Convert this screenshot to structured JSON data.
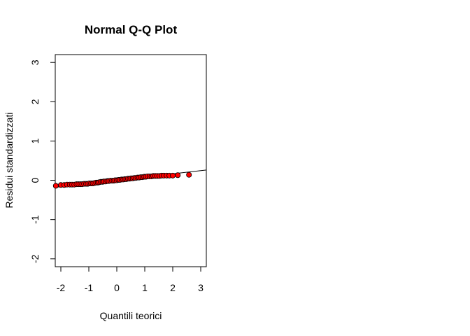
{
  "chart_data": {
    "type": "scatter",
    "title": "Normal Q-Q Plot",
    "xlabel": "Quantili teorici",
    "ylabel": "Residui  standardizzati",
    "xlim": [
      -2.2,
      3.2
    ],
    "ylim": [
      -2.2,
      3.2
    ],
    "x_ticks": [
      -2,
      -1,
      0,
      1,
      2,
      3
    ],
    "y_ticks": [
      -2,
      -1,
      0,
      1,
      2,
      3
    ],
    "x_tick_labels": [
      "-2",
      "-1",
      "0",
      "1",
      "2",
      "3"
    ],
    "y_tick_labels": [
      "-2",
      "-1",
      "0",
      "1",
      "2",
      "3"
    ],
    "grid": false,
    "point_color": "#ff0000",
    "point_edge_color": "#000000",
    "line_color": "#000000",
    "reference_line": {
      "intercept": 0.0,
      "slope": 0.082
    },
    "series": [
      {
        "x": [
          -2.18,
          -2.0,
          -1.88,
          -1.78,
          -1.68,
          -1.6,
          -1.52,
          -1.44,
          -1.37,
          -1.3,
          -1.24,
          -1.17,
          -1.1,
          -1.04,
          -0.98,
          -0.92,
          -0.86,
          -0.8,
          -0.74,
          -0.68,
          -0.63,
          -0.57,
          -0.51,
          -0.46,
          -0.4,
          -0.34,
          -0.29,
          -0.23,
          -0.17,
          -0.11,
          -0.06,
          0.0,
          0.06,
          0.11,
          0.17,
          0.23,
          0.29,
          0.34,
          0.4,
          0.46,
          0.51,
          0.57,
          0.63,
          0.68,
          0.74,
          0.8,
          0.86,
          0.92,
          0.98,
          1.04,
          1.1,
          1.17,
          1.24,
          1.3,
          1.37,
          1.44,
          1.52,
          1.6,
          1.68,
          1.78,
          1.88,
          2.0,
          2.18,
          2.58
        ],
        "y": [
          -0.14,
          -0.12,
          -0.12,
          -0.11,
          -0.11,
          -0.11,
          -0.11,
          -0.1,
          -0.1,
          -0.1,
          -0.1,
          -0.09,
          -0.09,
          -0.09,
          -0.08,
          -0.08,
          -0.08,
          -0.07,
          -0.06,
          -0.06,
          -0.05,
          -0.04,
          -0.04,
          -0.03,
          -0.03,
          -0.02,
          -0.02,
          -0.01,
          -0.01,
          -0.01,
          0.0,
          0.0,
          0.01,
          0.01,
          0.02,
          0.02,
          0.03,
          0.03,
          0.04,
          0.04,
          0.05,
          0.05,
          0.06,
          0.06,
          0.07,
          0.07,
          0.08,
          0.08,
          0.09,
          0.09,
          0.1,
          0.1,
          0.1,
          0.11,
          0.11,
          0.11,
          0.11,
          0.12,
          0.12,
          0.12,
          0.12,
          0.12,
          0.13,
          0.14
        ]
      }
    ]
  }
}
